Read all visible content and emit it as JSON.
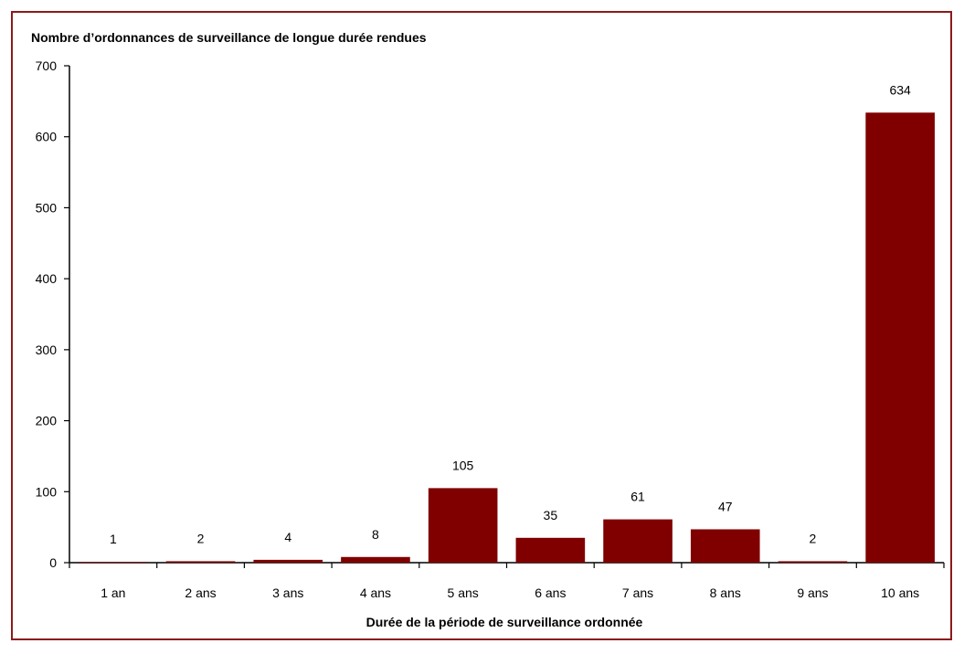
{
  "chart_data": {
    "type": "bar",
    "title": "Nombre d’ordonnances de surveillance de longue durée rendues",
    "xlabel": "Durée de la période de surveillance ordonnée",
    "ylabel": "",
    "categories": [
      "1 an",
      "2 ans",
      "3 ans",
      "4 ans",
      "5 ans",
      "6 ans",
      "7 ans",
      "8 ans",
      "9 ans",
      "10 ans"
    ],
    "values": [
      1,
      2,
      4,
      8,
      105,
      35,
      61,
      47,
      2,
      634
    ],
    "ylim": [
      0,
      700
    ],
    "yticks": [
      "0",
      "100",
      "200",
      "300",
      "400",
      "500",
      "600",
      "700"
    ],
    "grid": false,
    "legend": "none",
    "bar_color": "#800000",
    "frame_color": "#8b1a1a"
  }
}
